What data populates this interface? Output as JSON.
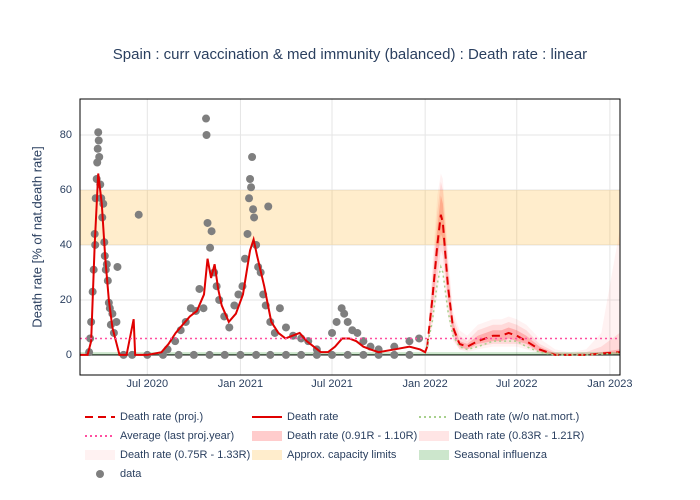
{
  "chart_data": {
    "type": "line",
    "title": "Spain : curr vaccination & med immunity (balanced) : Death rate : linear",
    "y_label": "Death rate [% of nat.death rate]",
    "xlim": [
      "2020-02-19",
      "2023-01-21"
    ],
    "ylim": [
      -7.3,
      93.1
    ],
    "xticks": [
      {
        "value": "2020-07-01",
        "label": "Jul 2020"
      },
      {
        "value": "2021-01-01",
        "label": "Jan 2021"
      },
      {
        "value": "2021-07-01",
        "label": "Jul 2021"
      },
      {
        "value": "2022-01-01",
        "label": "Jan 2022"
      },
      {
        "value": "2022-07-01",
        "label": "Jul 2022"
      },
      {
        "value": "2023-01-01",
        "label": "Jan 2023"
      }
    ],
    "yticks": [
      0,
      20,
      40,
      60,
      80
    ],
    "grid": true,
    "legend": "bottom",
    "series": [
      {
        "name": "Death rate (proj.)",
        "kind": "line",
        "dash": "dash",
        "color": "#e00000",
        "x": [
          "2022-01-05",
          "2022-01-15",
          "2022-01-25",
          "2022-02-01",
          "2022-02-05",
          "2022-02-15",
          "2022-02-25",
          "2022-03-10",
          "2022-03-25",
          "2022-04-15",
          "2022-05-15",
          "2022-06-01",
          "2022-06-15",
          "2022-07-01",
          "2022-07-20",
          "2022-08-15",
          "2022-09-15",
          "2022-10-15",
          "2022-11-15",
          "2022-12-15",
          "2023-01-20"
        ],
        "values": [
          3,
          20,
          40,
          51,
          48,
          25,
          10,
          4,
          3,
          5,
          7,
          7,
          8,
          7,
          5,
          2,
          0,
          0,
          0,
          0.5,
          1
        ]
      },
      {
        "name": "Death rate",
        "kind": "line",
        "dash": "solid",
        "color": "#e00000",
        "x": [
          "2020-02-20",
          "2020-03-05",
          "2020-03-12",
          "2020-03-19",
          "2020-03-26",
          "2020-04-02",
          "2020-04-09",
          "2020-04-16",
          "2020-04-23",
          "2020-04-30",
          "2020-05-07",
          "2020-05-21",
          "2020-06-04",
          "2020-06-07",
          "2020-07-01",
          "2020-07-29",
          "2020-08-12",
          "2020-08-26",
          "2020-09-09",
          "2020-09-23",
          "2020-10-07",
          "2020-10-21",
          "2020-10-28",
          "2020-11-04",
          "2020-11-11",
          "2020-11-18",
          "2020-11-25",
          "2020-12-09",
          "2020-12-23",
          "2021-01-06",
          "2021-01-20",
          "2021-01-27",
          "2021-02-03",
          "2021-02-17",
          "2021-03-03",
          "2021-03-17",
          "2021-03-31",
          "2021-04-14",
          "2021-04-28",
          "2021-05-12",
          "2021-05-26",
          "2021-06-09",
          "2021-06-23",
          "2021-07-07",
          "2021-07-21",
          "2021-08-04",
          "2021-08-18",
          "2021-09-01",
          "2021-09-15",
          "2021-10-01",
          "2021-11-01",
          "2021-12-01",
          "2021-12-22",
          "2022-01-01",
          "2022-01-05"
        ],
        "values": [
          0,
          0,
          5,
          40,
          66,
          55,
          35,
          20,
          10,
          5,
          0,
          0,
          13,
          0,
          0,
          1,
          4,
          8,
          11,
          14,
          16,
          22,
          35,
          28,
          33,
          24,
          18,
          12,
          15,
          22,
          38,
          42,
          36,
          25,
          12,
          8,
          6,
          7,
          8,
          5,
          3,
          1,
          1,
          3,
          6,
          6,
          5,
          3,
          2,
          1,
          2,
          3,
          2,
          1,
          3
        ]
      },
      {
        "name": "Death rate (w/o nat.mort.)",
        "kind": "line",
        "dash": "dot",
        "color": "#a8d08d",
        "x": [
          "2022-01-05",
          "2022-01-15",
          "2022-01-25",
          "2022-02-01",
          "2022-02-05",
          "2022-02-15",
          "2022-02-25",
          "2022-03-10",
          "2022-03-25",
          "2022-04-15",
          "2022-05-15",
          "2022-06-01",
          "2022-06-15",
          "2022-07-01",
          "2022-07-20",
          "2022-08-15",
          "2022-09-15",
          "2022-10-15",
          "2022-11-15",
          "2022-12-15",
          "2023-01-20"
        ],
        "values": [
          3,
          12,
          26,
          32,
          30,
          16,
          7,
          3,
          2,
          3,
          5,
          5,
          5,
          5,
          3,
          1,
          0,
          0,
          0,
          0.3,
          0.7
        ]
      },
      {
        "name": "Average (last proj.year)",
        "kind": "line",
        "dash": "dot",
        "color": "#ff4fa0",
        "x": [
          "2020-02-19",
          "2023-01-21"
        ],
        "values": [
          6,
          6
        ]
      },
      {
        "name": "Death rate (0.91R - 1.10R)",
        "kind": "band",
        "color": "rgba(255,0,0,0.2)",
        "x": [
          "2022-01-05",
          "2022-01-15",
          "2022-01-25",
          "2022-02-01",
          "2022-02-05",
          "2022-02-15",
          "2022-02-25",
          "2022-03-10",
          "2022-03-25",
          "2022-04-15",
          "2022-05-15",
          "2022-06-01",
          "2022-06-15",
          "2022-07-01",
          "2022-07-20",
          "2022-08-15",
          "2022-09-15",
          "2022-10-15",
          "2022-11-15",
          "2022-12-15",
          "2023-01-20"
        ],
        "lower": [
          3,
          16,
          34,
          44,
          42,
          21,
          8,
          3,
          2,
          4,
          5,
          5,
          6,
          5,
          4,
          1,
          0,
          0,
          0,
          0.3,
          0.5
        ],
        "upper": [
          3,
          24,
          46,
          58,
          55,
          30,
          12,
          5,
          4,
          7,
          9,
          9,
          10,
          9,
          7,
          3,
          0.5,
          0.3,
          0.3,
          1,
          2
        ]
      },
      {
        "name": "Death rate (0.83R - 1.21R)",
        "kind": "band",
        "color": "rgba(255,0,0,0.1)",
        "x": [
          "2022-01-05",
          "2022-01-15",
          "2022-01-25",
          "2022-02-01",
          "2022-02-05",
          "2022-02-15",
          "2022-02-25",
          "2022-03-10",
          "2022-03-25",
          "2022-04-15",
          "2022-05-15",
          "2022-06-01",
          "2022-06-15",
          "2022-07-01",
          "2022-07-20",
          "2022-08-15",
          "2022-09-15",
          "2022-10-15",
          "2022-11-15",
          "2022-12-15",
          "2023-01-20"
        ],
        "lower": [
          3,
          13,
          28,
          38,
          36,
          18,
          6,
          2,
          2,
          3,
          4,
          4,
          4,
          4,
          3,
          1,
          0,
          0,
          0,
          0.2,
          0.3
        ],
        "upper": [
          3,
          28,
          52,
          63,
          60,
          34,
          14,
          7,
          5,
          9,
          11,
          11,
          12,
          11,
          9,
          4,
          1,
          0.5,
          1,
          3,
          8
        ]
      },
      {
        "name": "Death rate (0.75R - 1.33R)",
        "kind": "band",
        "color": "rgba(255,0,0,0.05)",
        "x": [
          "2022-01-05",
          "2022-01-15",
          "2022-01-25",
          "2022-02-01",
          "2022-02-05",
          "2022-02-15",
          "2022-02-25",
          "2022-03-10",
          "2022-03-25",
          "2022-04-15",
          "2022-05-15",
          "2022-06-01",
          "2022-06-15",
          "2022-07-01",
          "2022-07-20",
          "2022-08-15",
          "2022-09-15",
          "2022-10-15",
          "2022-11-15",
          "2022-12-15",
          "2023-01-20"
        ],
        "lower": [
          3,
          10,
          22,
          32,
          30,
          14,
          5,
          2,
          1,
          2,
          3,
          3,
          3,
          3,
          2,
          0.5,
          0,
          0,
          0,
          0.1,
          0.2
        ],
        "upper": [
          3,
          32,
          58,
          66,
          64,
          38,
          16,
          9,
          7,
          11,
          13,
          13,
          14,
          13,
          11,
          6,
          2,
          1,
          2,
          8,
          45
        ]
      },
      {
        "name": "Approx. capacity limits",
        "kind": "band",
        "color": "rgba(255,165,0,0.2)",
        "x": [
          "2020-02-19",
          "2023-01-21"
        ],
        "lower": [
          40,
          40
        ],
        "upper": [
          60,
          60
        ]
      },
      {
        "name": "Seasonal influenza",
        "kind": "band",
        "color": "rgba(0,128,0,0.2)",
        "x": [
          "2020-02-19",
          "2023-01-21"
        ],
        "lower": [
          0,
          0
        ],
        "upper": [
          1,
          1
        ]
      },
      {
        "name": "data",
        "kind": "scatter",
        "color": "#7f7f7f",
        "x": [
          "2020-03-08",
          "2020-03-10",
          "2020-03-12",
          "2020-03-15",
          "2020-03-17",
          "2020-03-19",
          "2020-03-20",
          "2020-03-21",
          "2020-03-23",
          "2020-03-24",
          "2020-03-25",
          "2020-03-26",
          "2020-03-27",
          "2020-03-28",
          "2020-03-30",
          "2020-04-01",
          "2020-04-03",
          "2020-04-05",
          "2020-04-07",
          "2020-04-08",
          "2020-04-10",
          "2020-04-12",
          "2020-04-14",
          "2020-04-16",
          "2020-04-18",
          "2020-04-20",
          "2020-04-23",
          "2020-04-26",
          "2020-05-01",
          "2020-05-03",
          "2020-06-14",
          "2020-08-10",
          "2020-08-25",
          "2020-09-05",
          "2020-09-15",
          "2020-09-25",
          "2020-10-05",
          "2020-10-12",
          "2020-10-20",
          "2020-10-25",
          "2020-10-26",
          "2020-10-28",
          "2020-11-02",
          "2020-11-05",
          "2020-11-10",
          "2020-11-15",
          "2020-11-20",
          "2020-11-30",
          "2020-12-10",
          "2020-12-20",
          "2020-12-28",
          "2021-01-05",
          "2021-01-10",
          "2021-01-15",
          "2021-01-18",
          "2021-01-20",
          "2021-01-22",
          "2021-01-24",
          "2021-01-26",
          "2021-01-28",
          "2021-02-01",
          "2021-02-05",
          "2021-02-10",
          "2021-02-15",
          "2021-02-20",
          "2021-02-25",
          "2021-03-01",
          "2021-03-10",
          "2021-03-20",
          "2021-04-01",
          "2021-04-15",
          "2021-05-01",
          "2021-05-15",
          "2021-06-01",
          "2021-07-01",
          "2021-07-10",
          "2021-07-20",
          "2021-07-25",
          "2021-08-01",
          "2021-08-10",
          "2021-08-20",
          "2021-09-01",
          "2021-09-15",
          "2021-10-01",
          "2021-11-01",
          "2021-12-01",
          "2021-12-20",
          "2020-05-15",
          "2020-06-01",
          "2020-07-01",
          "2020-08-01",
          "2020-09-01",
          "2020-10-01",
          "2020-11-01",
          "2020-12-01",
          "2021-01-01",
          "2021-02-01",
          "2021-03-01",
          "2021-04-01",
          "2021-05-01",
          "2021-06-01",
          "2021-07-01",
          "2021-08-01",
          "2021-09-01",
          "2021-10-01",
          "2021-11-01",
          "2021-12-01"
        ],
        "values": [
          1,
          6,
          12,
          23,
          31,
          44,
          40,
          57,
          64,
          70,
          75,
          81,
          78,
          72,
          62,
          57,
          50,
          55,
          41,
          36,
          31,
          33,
          27,
          19,
          17,
          11,
          15,
          8,
          12,
          32,
          51,
          2,
          5,
          9,
          12,
          17,
          16,
          24,
          17,
          86,
          80,
          48,
          39,
          45,
          30,
          25,
          20,
          14,
          10,
          18,
          22,
          25,
          35,
          44,
          57,
          64,
          61,
          72,
          53,
          50,
          40,
          32,
          30,
          22,
          18,
          54,
          12,
          8,
          17,
          10,
          7,
          6,
          5,
          2,
          8,
          12,
          17,
          15,
          12,
          9,
          8,
          5,
          3,
          2,
          3,
          5,
          6,
          0,
          0,
          0,
          0,
          0,
          0,
          0,
          0,
          0,
          0,
          0,
          0,
          0,
          0,
          0,
          0,
          0,
          0,
          0,
          0
        ]
      }
    ]
  }
}
